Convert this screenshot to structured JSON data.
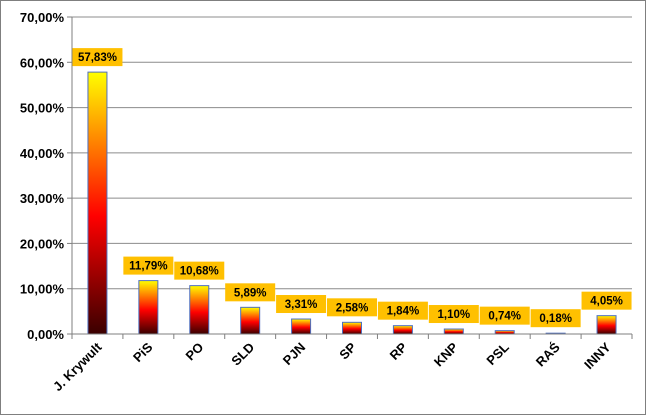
{
  "chart_data": {
    "type": "bar",
    "categories": [
      "J. Krywult",
      "PiS",
      "PO",
      "SLD",
      "PJN",
      "SP",
      "RP",
      "KNP",
      "PSL",
      "RAŚ",
      "INNY"
    ],
    "values": [
      57.83,
      11.79,
      10.68,
      5.89,
      3.31,
      2.58,
      1.84,
      1.1,
      0.74,
      0.18,
      4.05
    ],
    "data_labels": [
      "57,83%",
      "11,79%",
      "10,68%",
      "5,89%",
      "3,31%",
      "2,58%",
      "1,84%",
      "1,10%",
      "0,74%",
      "0,18%",
      "4,05%"
    ],
    "y_ticks": [
      "0,00%",
      "10,00%",
      "20,00%",
      "30,00%",
      "40,00%",
      "50,00%",
      "60,00%",
      "70,00%"
    ],
    "ylim": [
      0,
      70
    ],
    "title": "",
    "xlabel": "",
    "ylabel": "",
    "grid": true,
    "legend": "none",
    "colors": {
      "bar_top": "#ffff00",
      "bar_mid": "#ff0000",
      "bar_bottom": "#3a0000",
      "bar_outline": "#4f6fbf",
      "label_fill": "#ffc000",
      "gridline": "#8c8c8c",
      "axis": "#7f7f7f",
      "text": "#000000"
    }
  }
}
